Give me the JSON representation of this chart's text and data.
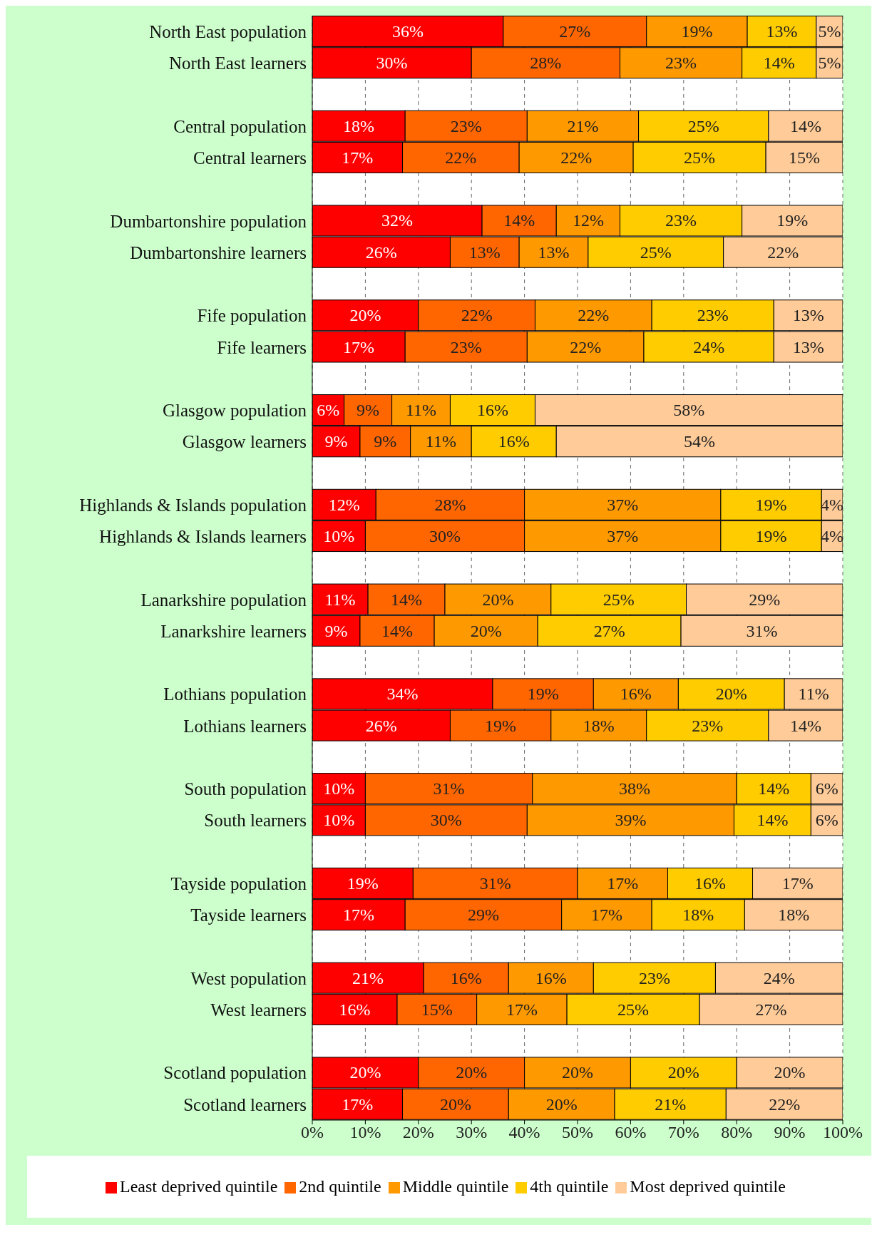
{
  "chart_data": {
    "type": "bar",
    "orientation": "horizontal",
    "stacked": true,
    "categories": [
      "North East population",
      "North East learners",
      null,
      "Central population",
      "Central learners",
      null,
      "Dumbartonshire population",
      "Dumbartonshire learners",
      null,
      "Fife population",
      "Fife learners",
      null,
      "Glasgow population",
      "Glasgow learners",
      null,
      "Highlands & Islands population",
      "Highlands & Islands learners",
      null,
      "Lanarkshire population",
      "Lanarkshire learners",
      null,
      "Lothians population",
      "Lothians learners",
      null,
      "South population",
      "South learners",
      null,
      "Tayside population",
      "Tayside learners",
      null,
      "West population",
      "West learners",
      null,
      "Scotland population",
      "Scotland learners"
    ],
    "series": [
      {
        "name": "Least deprived quintile",
        "color": "#ff0000",
        "values": [
          36,
          30,
          null,
          17.5,
          17,
          null,
          32,
          26,
          null,
          20,
          17.5,
          null,
          6,
          9,
          null,
          12,
          10,
          null,
          10.5,
          9,
          null,
          34,
          26,
          null,
          10,
          10,
          null,
          19,
          17.5,
          null,
          21,
          16,
          null,
          20,
          17
        ],
        "value_labels": [
          "36%",
          "30%",
          null,
          "18%",
          "17%",
          null,
          "32%",
          "26%",
          null,
          "20%",
          "17%",
          null,
          "6%",
          "9%",
          null,
          "12%",
          "10%",
          null,
          "11%",
          "9%",
          null,
          "34%",
          "26%",
          null,
          "10%",
          "10%",
          null,
          "19%",
          "17%",
          null,
          "21%",
          "16%",
          null,
          "20%",
          "17%"
        ]
      },
      {
        "name": "2nd quintile",
        "color": "#ff6600",
        "values": [
          27,
          28,
          null,
          23,
          22,
          null,
          14,
          13,
          null,
          22,
          23,
          null,
          9,
          9.5,
          null,
          28,
          30,
          null,
          14.5,
          14,
          null,
          19,
          19,
          null,
          31.5,
          30.5,
          null,
          31,
          29.5,
          null,
          16,
          15,
          null,
          20,
          20
        ],
        "value_labels": [
          "27%",
          "28%",
          null,
          "23%",
          "22%",
          null,
          "14%",
          "13%",
          null,
          "22%",
          "23%",
          null,
          "9%",
          "9%",
          null,
          "28%",
          "30%",
          null,
          "14%",
          "14%",
          null,
          "19%",
          "19%",
          null,
          "31%",
          "30%",
          null,
          "31%",
          "29%",
          null,
          "16%",
          "15%",
          null,
          "20%",
          "20%"
        ]
      },
      {
        "name": "Middle quintile",
        "color": "#ff9900",
        "values": [
          19,
          23,
          null,
          21,
          21.5,
          null,
          12,
          13,
          null,
          22,
          22,
          null,
          11,
          11.5,
          null,
          37,
          37,
          null,
          20,
          19.5,
          null,
          16,
          18,
          null,
          38.5,
          39,
          null,
          17,
          17,
          null,
          16,
          17,
          null,
          20,
          20
        ],
        "value_labels": [
          "19%",
          "23%",
          null,
          "21%",
          "22%",
          null,
          "12%",
          "13%",
          null,
          "22%",
          "22%",
          null,
          "11%",
          "11%",
          null,
          "37%",
          "37%",
          null,
          "20%",
          "20%",
          null,
          "16%",
          "18%",
          null,
          "38%",
          "39%",
          null,
          "17%",
          "17%",
          null,
          "16%",
          "17%",
          null,
          "20%",
          "20%"
        ]
      },
      {
        "name": "4th quintile",
        "color": "#ffcc00",
        "values": [
          13,
          14,
          null,
          24.5,
          25,
          null,
          23,
          25.5,
          null,
          23,
          24.5,
          null,
          16,
          16,
          null,
          19,
          19,
          null,
          25.5,
          27,
          null,
          20,
          23,
          null,
          14,
          14.5,
          null,
          16,
          17.5,
          null,
          23,
          25,
          null,
          20,
          21
        ],
        "value_labels": [
          "13%",
          "14%",
          null,
          "25%",
          "25%",
          null,
          "23%",
          "25%",
          null,
          "23%",
          "24%",
          null,
          "16%",
          "16%",
          null,
          "19%",
          "19%",
          null,
          "25%",
          "27%",
          null,
          "20%",
          "23%",
          null,
          "14%",
          "14%",
          null,
          "16%",
          "18%",
          null,
          "23%",
          "25%",
          null,
          "20%",
          "21%"
        ]
      },
      {
        "name": "Most deprived quintile",
        "color": "#ffcc99",
        "values": [
          5,
          5,
          null,
          14,
          14.5,
          null,
          19,
          22.5,
          null,
          13,
          13,
          null,
          58,
          54,
          null,
          4,
          4,
          null,
          29.5,
          30.5,
          null,
          11,
          14,
          null,
          6,
          6,
          null,
          17,
          18.5,
          null,
          24,
          27,
          null,
          20,
          22
        ],
        "value_labels": [
          "5%",
          "5%",
          null,
          "14%",
          "15%",
          null,
          "19%",
          "22%",
          null,
          "13%",
          "13%",
          null,
          "58%",
          "54%",
          null,
          "4%",
          "4%",
          null,
          "29%",
          "31%",
          null,
          "11%",
          "14%",
          null,
          "6%",
          "6%",
          null,
          "17%",
          "18%",
          null,
          "24%",
          "27%",
          null,
          "20%",
          "22%"
        ]
      }
    ],
    "xlim": [
      0,
      100
    ],
    "xticks": [
      {
        "value": 0,
        "label": "0%"
      },
      {
        "value": 10,
        "label": "10%"
      },
      {
        "value": 20,
        "label": "20%"
      },
      {
        "value": 30,
        "label": "30%"
      },
      {
        "value": 40,
        "label": "40%"
      },
      {
        "value": 50,
        "label": "50%"
      },
      {
        "value": 60,
        "label": "60%"
      },
      {
        "value": 70,
        "label": "70%"
      },
      {
        "value": 80,
        "label": "80%"
      },
      {
        "value": 90,
        "label": "90%"
      },
      {
        "value": 100,
        "label": "100%"
      }
    ],
    "grid": "x",
    "legend": "bottom"
  }
}
